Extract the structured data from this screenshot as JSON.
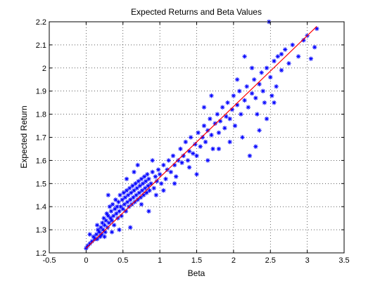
{
  "chart_data": {
    "type": "scatter",
    "title": "Expected Returns and Beta Values",
    "xlabel": "Beta",
    "ylabel": "Expected Return",
    "xlim": [
      -0.5,
      3.5
    ],
    "ylim": [
      1.2,
      2.2
    ],
    "xticks": [
      "-0.5",
      "0",
      "0.5",
      "1",
      "1.5",
      "2",
      "2.5",
      "3",
      "3.5"
    ],
    "yticks": [
      "1.2",
      "1.3",
      "1.4",
      "1.5",
      "1.6",
      "1.7",
      "1.8",
      "1.9",
      "2",
      "2.1",
      "2.2"
    ],
    "grid": true,
    "grid_style": "dotted",
    "marker": "*",
    "colors": {
      "points": "#0000ff",
      "fit_line": "#ff0000",
      "axes": "#000000",
      "grid": "#000000"
    },
    "fit_line": {
      "x": [
        0,
        3.13
      ],
      "y": [
        1.22,
        2.18
      ]
    },
    "series": [
      {
        "values": [
          [
            0.0,
            1.22
          ],
          [
            0.02,
            1.23
          ],
          [
            0.05,
            1.24
          ],
          [
            0.08,
            1.25
          ],
          [
            0.1,
            1.27
          ],
          [
            0.12,
            1.26
          ],
          [
            0.14,
            1.28
          ],
          [
            0.15,
            1.26
          ],
          [
            0.16,
            1.3
          ],
          [
            0.18,
            1.29
          ],
          [
            0.19,
            1.27
          ],
          [
            0.2,
            1.31
          ],
          [
            0.21,
            1.28
          ],
          [
            0.22,
            1.33
          ],
          [
            0.23,
            1.3
          ],
          [
            0.24,
            1.35
          ],
          [
            0.25,
            1.32
          ],
          [
            0.26,
            1.29
          ],
          [
            0.27,
            1.34
          ],
          [
            0.28,
            1.37
          ],
          [
            0.29,
            1.31
          ],
          [
            0.3,
            1.36
          ],
          [
            0.31,
            1.33
          ],
          [
            0.32,
            1.4
          ],
          [
            0.33,
            1.35
          ],
          [
            0.34,
            1.38
          ],
          [
            0.35,
            1.34
          ],
          [
            0.36,
            1.41
          ],
          [
            0.37,
            1.36
          ],
          [
            0.38,
            1.32
          ],
          [
            0.39,
            1.39
          ],
          [
            0.4,
            1.43
          ],
          [
            0.41,
            1.37
          ],
          [
            0.42,
            1.4
          ],
          [
            0.43,
            1.35
          ],
          [
            0.44,
            1.42
          ],
          [
            0.45,
            1.38
          ],
          [
            0.46,
            1.45
          ],
          [
            0.47,
            1.4
          ],
          [
            0.48,
            1.36
          ],
          [
            0.49,
            1.43
          ],
          [
            0.5,
            1.39
          ],
          [
            0.51,
            1.46
          ],
          [
            0.52,
            1.41
          ],
          [
            0.53,
            1.44
          ],
          [
            0.54,
            1.38
          ],
          [
            0.55,
            1.47
          ],
          [
            0.56,
            1.42
          ],
          [
            0.57,
            1.45
          ],
          [
            0.58,
            1.4
          ],
          [
            0.59,
            1.48
          ],
          [
            0.6,
            1.43
          ],
          [
            0.61,
            1.46
          ],
          [
            0.62,
            1.41
          ],
          [
            0.63,
            1.49
          ],
          [
            0.64,
            1.44
          ],
          [
            0.65,
            1.47
          ],
          [
            0.66,
            1.42
          ],
          [
            0.67,
            1.5
          ],
          [
            0.68,
            1.45
          ],
          [
            0.69,
            1.48
          ],
          [
            0.7,
            1.43
          ],
          [
            0.71,
            1.51
          ],
          [
            0.72,
            1.46
          ],
          [
            0.73,
            1.49
          ],
          [
            0.74,
            1.44
          ],
          [
            0.75,
            1.52
          ],
          [
            0.76,
            1.47
          ],
          [
            0.77,
            1.5
          ],
          [
            0.78,
            1.45
          ],
          [
            0.79,
            1.53
          ],
          [
            0.8,
            1.48
          ],
          [
            0.81,
            1.51
          ],
          [
            0.82,
            1.46
          ],
          [
            0.83,
            1.54
          ],
          [
            0.84,
            1.49
          ],
          [
            0.85,
            1.52
          ],
          [
            0.86,
            1.47
          ],
          [
            0.88,
            1.5
          ],
          [
            0.9,
            1.55
          ],
          [
            0.92,
            1.48
          ],
          [
            0.94,
            1.53
          ],
          [
            0.96,
            1.51
          ],
          [
            0.98,
            1.56
          ],
          [
            1.0,
            1.54
          ],
          [
            1.02,
            1.5
          ],
          [
            1.05,
            1.58
          ],
          [
            1.08,
            1.52
          ],
          [
            1.1,
            1.56
          ],
          [
            1.12,
            1.6
          ],
          [
            1.15,
            1.55
          ],
          [
            1.18,
            1.62
          ],
          [
            1.2,
            1.58
          ],
          [
            1.22,
            1.53
          ],
          [
            1.25,
            1.6
          ],
          [
            1.28,
            1.65
          ],
          [
            1.3,
            1.59
          ],
          [
            1.32,
            1.62
          ],
          [
            1.35,
            1.68
          ],
          [
            1.38,
            1.6
          ],
          [
            1.4,
            1.64
          ],
          [
            1.42,
            1.7
          ],
          [
            1.45,
            1.63
          ],
          [
            1.48,
            1.67
          ],
          [
            1.5,
            1.62
          ],
          [
            1.52,
            1.72
          ],
          [
            1.55,
            1.66
          ],
          [
            1.58,
            1.7
          ],
          [
            1.6,
            1.75
          ],
          [
            1.62,
            1.68
          ],
          [
            1.65,
            1.73
          ],
          [
            1.68,
            1.78
          ],
          [
            1.7,
            1.71
          ],
          [
            1.72,
            1.65
          ],
          [
            1.75,
            1.76
          ],
          [
            1.78,
            1.8
          ],
          [
            1.8,
            1.72
          ],
          [
            1.82,
            1.77
          ],
          [
            1.85,
            1.83
          ],
          [
            1.88,
            1.74
          ],
          [
            1.9,
            1.79
          ],
          [
            1.92,
            1.85
          ],
          [
            1.95,
            1.78
          ],
          [
            1.98,
            1.82
          ],
          [
            2.0,
            1.88
          ],
          [
            2.02,
            1.75
          ],
          [
            2.05,
            1.84
          ],
          [
            2.08,
            1.9
          ],
          [
            2.1,
            1.8
          ],
          [
            2.12,
            1.7
          ],
          [
            2.15,
            1.86
          ],
          [
            2.18,
            1.92
          ],
          [
            2.2,
            1.83
          ],
          [
            2.22,
            1.62
          ],
          [
            2.25,
            1.89
          ],
          [
            2.28,
            1.95
          ],
          [
            2.3,
            1.87
          ],
          [
            2.32,
            1.8
          ],
          [
            2.35,
            1.93
          ],
          [
            2.38,
            1.98
          ],
          [
            2.4,
            1.9
          ],
          [
            2.42,
            1.85
          ],
          [
            2.45,
            2.0
          ],
          [
            2.48,
            2.2
          ],
          [
            2.5,
            1.96
          ],
          [
            2.52,
            1.88
          ],
          [
            2.55,
            2.03
          ],
          [
            2.58,
            1.92
          ],
          [
            2.6,
            2.05
          ],
          [
            2.65,
            1.99
          ],
          [
            2.7,
            2.08
          ],
          [
            2.75,
            2.02
          ],
          [
            2.8,
            2.1
          ],
          [
            2.88,
            2.05
          ],
          [
            2.95,
            2.12
          ],
          [
            3.0,
            2.14
          ],
          [
            3.05,
            2.04
          ],
          [
            3.1,
            2.09
          ],
          [
            3.13,
            2.17
          ],
          [
            0.7,
            1.58
          ],
          [
            0.9,
            1.6
          ],
          [
            0.55,
            1.52
          ],
          [
            0.3,
            1.45
          ],
          [
            1.2,
            1.5
          ],
          [
            1.5,
            1.54
          ],
          [
            1.8,
            1.65
          ],
          [
            0.6,
            1.31
          ],
          [
            0.85,
            1.38
          ],
          [
            0.45,
            1.3
          ],
          [
            1.05,
            1.47
          ],
          [
            0.75,
            1.41
          ],
          [
            0.25,
            1.27
          ],
          [
            0.35,
            1.29
          ],
          [
            0.65,
            1.55
          ],
          [
            2.45,
            1.78
          ],
          [
            2.55,
            1.85
          ],
          [
            2.65,
            2.06
          ],
          [
            1.95,
            1.68
          ],
          [
            2.35,
            1.73
          ],
          [
            2.05,
            1.95
          ],
          [
            2.15,
            2.05
          ],
          [
            2.25,
            2.0
          ],
          [
            2.3,
            1.66
          ],
          [
            1.65,
            1.6
          ],
          [
            1.4,
            1.57
          ],
          [
            1.6,
            1.83
          ],
          [
            1.7,
            1.88
          ],
          [
            0.95,
            1.45
          ],
          [
            0.15,
            1.32
          ],
          [
            0.05,
            1.28
          ]
        ]
      }
    ]
  }
}
